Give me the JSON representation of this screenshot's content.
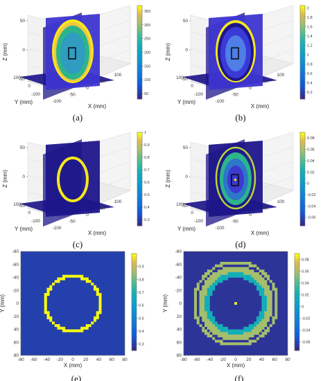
{
  "figure": {
    "colors": {
      "deep": "#1e168a",
      "base": "#3d35d0",
      "mid": "#2f9cc0",
      "teal": "#2cb58a",
      "yellow": "#f5e81c",
      "lime": "#b9d638"
    }
  },
  "chart_data": [
    {
      "panel_label": "(a)",
      "type": "volume_slice_3d",
      "xlabel": "X (mm)",
      "ylabel": "Y (mm)",
      "zlabel": "Z (mm)",
      "xticks": [
        "-100",
        "-50",
        "0",
        "50",
        "100"
      ],
      "yticks": [
        "100",
        "0",
        "-100"
      ],
      "zticks": [
        "50",
        "0",
        "-50"
      ],
      "colorbar": {
        "ticks": [
          "350",
          "300",
          "250",
          "200",
          "150",
          "100",
          "50"
        ],
        "min": 30,
        "max": 370
      }
    },
    {
      "panel_label": "(b)",
      "type": "volume_slice_3d",
      "xlabel": "X (mm)",
      "ylabel": "Y (mm)",
      "zlabel": "Z (mm)",
      "xticks": [
        "-100",
        "-50",
        "0",
        "50",
        "100"
      ],
      "yticks": [
        "100",
        "0",
        "-100"
      ],
      "zticks": [
        "50",
        "0",
        "-50"
      ],
      "colorbar": {
        "ticks": [
          "2",
          "1.8",
          "1.6",
          "1.4",
          "1.2",
          "1",
          "0.8",
          "0.6",
          "0.4",
          "0.2"
        ],
        "min": 0.05,
        "max": 2.05
      }
    },
    {
      "panel_label": "(c)",
      "type": "volume_slice_3d",
      "xlabel": "X (mm)",
      "ylabel": "Y (mm)",
      "zlabel": "Z (mm)",
      "xticks": [
        "-100",
        "-50",
        "0",
        "50",
        "100"
      ],
      "yticks": [
        "100",
        "0",
        "-100"
      ],
      "zticks": [
        "50",
        "0",
        "-50"
      ],
      "colorbar": {
        "ticks": [
          "1",
          "0.9",
          "0.8",
          "0.7",
          "0.6",
          "0.5",
          "0.4",
          "0.3"
        ],
        "min": 0.25,
        "max": 1.0
      }
    },
    {
      "panel_label": "(d)",
      "type": "volume_slice_3d",
      "xlabel": "X (mm)",
      "ylabel": "Y (mm)",
      "zlabel": "Z (mm)",
      "xticks": [
        "-100",
        "-50",
        "0",
        "50",
        "100"
      ],
      "yticks": [
        "100",
        "0",
        "-100"
      ],
      "zticks": [
        "50",
        "0",
        "-50"
      ],
      "colorbar": {
        "ticks": [
          "0.08",
          "0.06",
          "0.04",
          "0.02",
          "0",
          "-0.02",
          "-0.04",
          "-0.06"
        ],
        "min": -0.075,
        "max": 0.09
      }
    },
    {
      "panel_label": "(e)",
      "type": "heatmap",
      "xlabel": "X (mm)",
      "ylabel": "Y (mm)",
      "xlim": [
        -80,
        80
      ],
      "ylim": [
        80,
        -80
      ],
      "xticks": [
        "-80",
        "-60",
        "-40",
        "-20",
        "0",
        "20",
        "40",
        "60",
        "80"
      ],
      "yticks": [
        "-80",
        "-60",
        "-40",
        "-20",
        "0",
        "20",
        "40",
        "60",
        "80"
      ],
      "rings": [
        {
          "inner_mm": 40,
          "outer_mm": 45,
          "value": 1.0
        }
      ],
      "background_value": 0.3,
      "colorbar": {
        "ticks": [
          "0.9",
          "0.8",
          "0.7",
          "0.6",
          "0.5",
          "0.4",
          "0.3"
        ],
        "min": 0.25,
        "max": 1.0
      }
    },
    {
      "panel_label": "(f)",
      "type": "heatmap",
      "xlabel": "X (mm)",
      "ylabel": "Y (mm)",
      "xlim": [
        -80,
        80
      ],
      "ylim": [
        80,
        -80
      ],
      "xticks": [
        "-80",
        "-60",
        "-40",
        "-20",
        "0",
        "20",
        "40",
        "60",
        "80"
      ],
      "yticks": [
        "-80",
        "-60",
        "-40",
        "-20",
        "0",
        "20",
        "40",
        "60",
        "80"
      ],
      "rings": [
        {
          "inner_mm": 62,
          "outer_mm": 66,
          "value": 0.06
        },
        {
          "inner_mm": 48,
          "outer_mm": 58,
          "value": 0.06
        },
        {
          "inner_mm": 40,
          "outer_mm": 48,
          "value": 0.02
        }
      ],
      "center_value": 0.09,
      "background_value": -0.07,
      "colorbar": {
        "ticks": [
          "0.08",
          "0.06",
          "0.04",
          "0.02",
          "0",
          "-0.02",
          "-0.04",
          "-0.06"
        ],
        "min": -0.075,
        "max": 0.09
      }
    }
  ]
}
